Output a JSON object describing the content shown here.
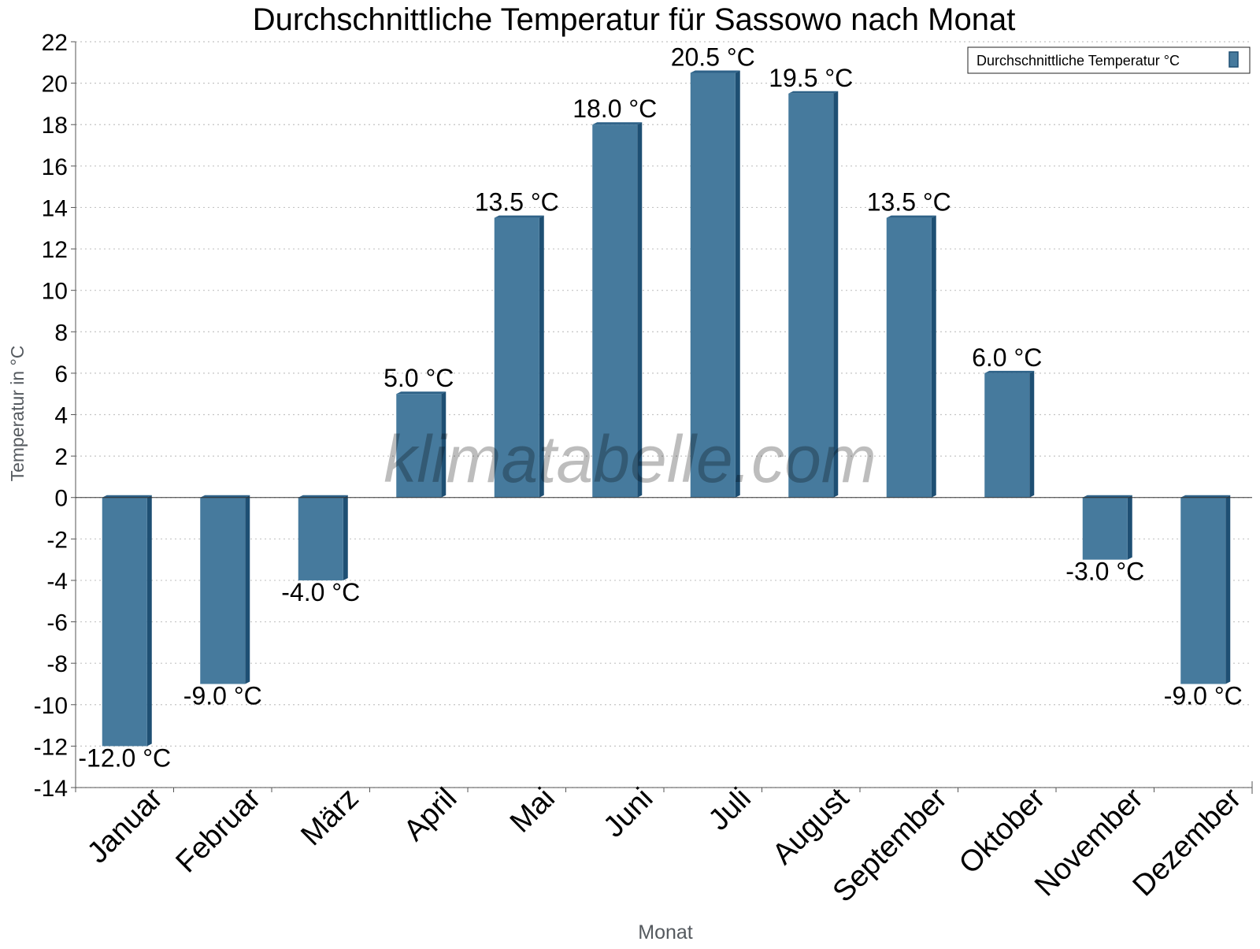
{
  "chart_data": {
    "type": "bar",
    "title": "Durchschnittliche Temperatur für Sassowo nach Monat",
    "xlabel": "Monat",
    "ylabel": "Temperatur in °C",
    "categories": [
      "Januar",
      "Februar",
      "März",
      "April",
      "Mai",
      "Juni",
      "Juli",
      "August",
      "September",
      "Oktober",
      "November",
      "Dezember"
    ],
    "series": [
      {
        "name": "Durchschnittliche Temperatur °C",
        "values": [
          -12.0,
          -9.0,
          -4.0,
          5.0,
          13.5,
          18.0,
          20.5,
          19.5,
          13.5,
          6.0,
          -3.0,
          -9.0
        ],
        "value_labels": [
          "-12.0 °C",
          "-9.0 °C",
          "-4.0 °C",
          "5.0 °C",
          "13.5 °C",
          "18.0 °C",
          "20.5 °C",
          "19.5 °C",
          "13.5 °C",
          "6.0 °C",
          "-3.0 °C",
          "-9.0 °C"
        ]
      }
    ],
    "ylim": [
      -14,
      22
    ],
    "ytick_step": 2,
    "grid": true,
    "legend_position": "top-right",
    "watermark": "klimatabelle.com",
    "colors": {
      "bar_front": "#467a9d",
      "bar_side": "#1e4f73",
      "bar_top": "#2e6288",
      "grid": "#c4c4c4",
      "axis": "#555555",
      "text": "#000000",
      "axis_label": "#555a5f",
      "watermark": "rgba(0,0,0,0.26)"
    }
  }
}
